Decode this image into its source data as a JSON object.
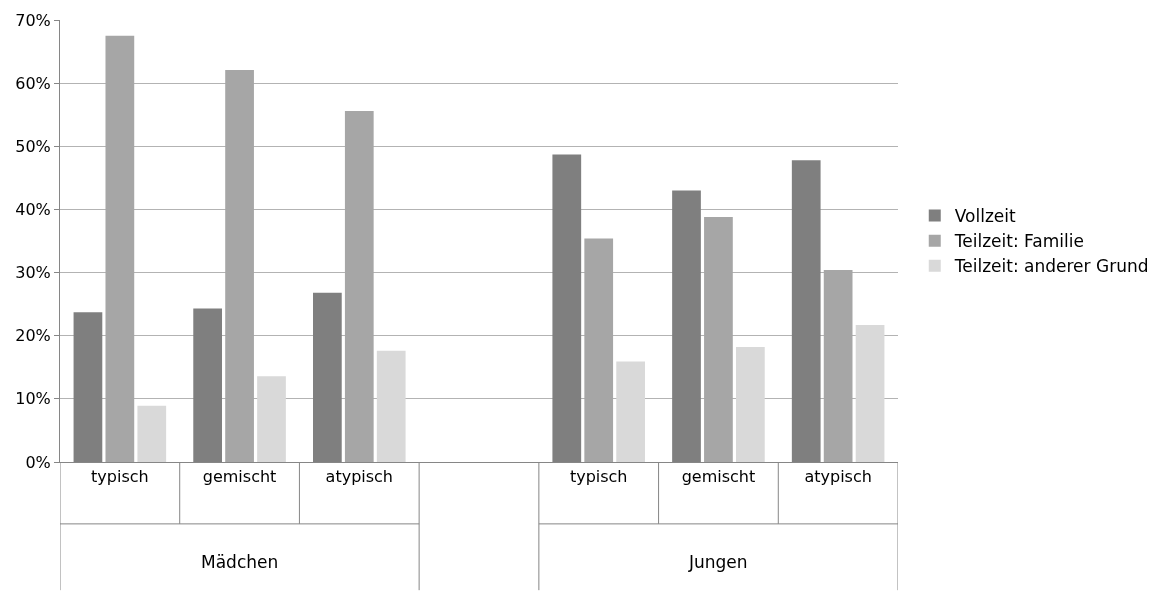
{
  "chart_data": {
    "type": "bar",
    "categories": [
      "typisch",
      "gemischt",
      "atypisch",
      null,
      "typisch",
      "gemischt",
      "atypisch"
    ],
    "series": [
      {
        "name": "Vollzeit",
        "color": "#7f7f7f",
        "values": [
          23.7,
          24.3,
          26.8,
          null,
          48.7,
          43.0,
          47.8
        ]
      },
      {
        "name": "Teilzeit: Familie",
        "color": "#a6a6a6",
        "values": [
          67.5,
          62.1,
          55.6,
          null,
          35.4,
          38.8,
          30.4
        ]
      },
      {
        "name": "Teilzeit: anderer Grund",
        "color": "#d9d9d9",
        "values": [
          8.9,
          13.6,
          17.6,
          null,
          15.9,
          18.2,
          21.7
        ]
      }
    ],
    "annotations": [
      "Mädchen",
      "Jungen"
    ],
    "ylim": [
      0,
      70
    ],
    "yticks": [
      {
        "value": 0,
        "label": "0%"
      },
      {
        "value": 10,
        "label": "10%"
      },
      {
        "value": 20,
        "label": "20%"
      },
      {
        "value": 30,
        "label": "30%"
      },
      {
        "value": 40,
        "label": "40%"
      },
      {
        "value": 50,
        "label": "50%"
      },
      {
        "value": 60,
        "label": "60%"
      },
      {
        "value": 70,
        "label": "70%"
      }
    ],
    "grid": "y",
    "legend": "right"
  }
}
